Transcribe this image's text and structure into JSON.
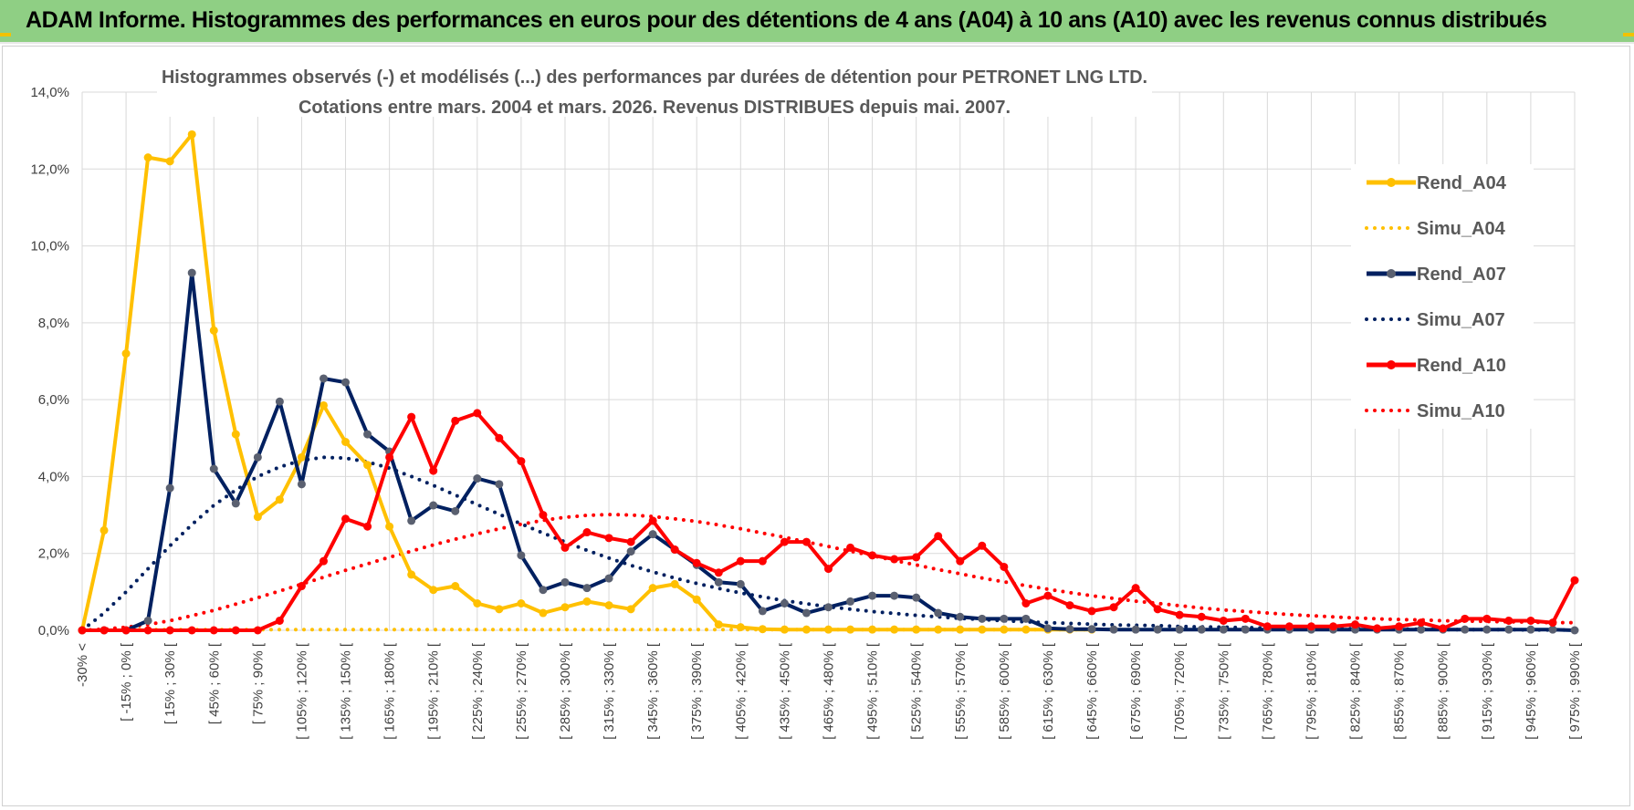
{
  "banner": {
    "title": "ADAM Informe. Histogrammes des performances en euros pour des détentions de 4 ans (A04) à 10 ans (A10) avec les revenus connus distribués"
  },
  "colors": {
    "banner": "#8fcf84",
    "a04": "#ffc000",
    "a07": "#002060",
    "a10": "#ff0000",
    "marker_a07": "#5a6070",
    "grid": "#d9d9d9"
  },
  "chart_data": {
    "type": "line",
    "title_line1": "Histogrammes observés (-) et modélisés (...) des performances par durées de détention pour PETRONET LNG LTD.",
    "title_line2": "Cotations entre mars. 2004 et mars. 2026. Revenus DISTRIBUES depuis mai. 2007.",
    "ylim": [
      0,
      14
    ],
    "yticks": [
      "0,0%",
      "2,0%",
      "4,0%",
      "6,0%",
      "8,0%",
      "10,0%",
      "12,0%",
      "14,0%"
    ],
    "xtick_labels": [
      "-30% <",
      "[ -15% ; 0% [",
      "[ 15% ; 30% [",
      "[ 45% ; 60% [",
      "[ 75% ; 90% [",
      "[ 105% ; 120% [",
      "[ 135% ; 150% [",
      "[ 165% ; 180% [",
      "[ 195% ; 210% [",
      "[ 225% ; 240% [",
      "[ 255% ; 270% [",
      "[ 285% ; 300% [",
      "[ 315% ; 330% [",
      "[ 345% ; 360% [",
      "[ 375% ; 390% [",
      "[ 405% ; 420% [",
      "[ 435% ; 450% [",
      "[ 465% ; 480% [",
      "[ 495% ; 510% [",
      "[ 525% ; 540% [",
      "[ 555% ; 570% [",
      "[ 585% ; 600% [",
      "[ 615% ; 630% [",
      "[ 645% ; 660% [",
      "[ 675% ; 690% [",
      "[ 705% ; 720% [",
      "[ 735% ; 750% [",
      "[ 765% ; 780% [",
      "[ 795% ; 810% [",
      "[ 825% ; 840% [",
      "[ 855% ; 870% [",
      "[ 885% ; 900% [",
      "[ 915% ; 930% [",
      "[ 945% ; 960% [",
      "[ 975% ; 990% ["
    ],
    "category_count": 69,
    "legend_position": "right",
    "series": [
      {
        "name": "Rend_A04",
        "style": "solid",
        "color": "#ffc000",
        "marker": "#ffc000",
        "values": [
          0,
          2.6,
          7.2,
          12.3,
          12.2,
          12.9,
          7.8,
          5.1,
          2.95,
          3.4,
          4.5,
          5.85,
          4.9,
          4.3,
          2.7,
          1.45,
          1.05,
          1.15,
          0.7,
          0.55,
          0.7,
          0.45,
          0.6,
          0.75,
          0.65,
          0.55,
          1.1,
          1.2,
          0.8,
          0.15,
          0.08,
          0.03,
          0.02,
          0.02,
          0.02,
          0.02,
          0.02,
          0.02,
          0.02,
          0.02,
          0.02,
          0.02,
          0.02,
          0.02,
          0.02,
          0.02,
          0.02
        ]
      },
      {
        "name": "Simu_A04",
        "style": "dotted",
        "color": "#ffc000",
        "values": [
          0,
          0.02,
          0.02,
          0.02,
          0.02,
          0.02,
          0.02,
          0.02,
          0.02,
          0.02,
          0.02,
          0.02,
          0.02,
          0.02,
          0.02,
          0.02,
          0.02,
          0.02,
          0.02,
          0.02,
          0.02,
          0.02,
          0.02,
          0.02,
          0.02,
          0.02,
          0.02,
          0.02,
          0.02,
          0.02,
          0.02,
          0.02,
          0.02,
          0.02,
          0.02,
          0.02,
          0.02,
          0.02,
          0.02,
          0.02,
          0.02,
          0.02,
          0.02,
          0.02,
          0.02,
          0.02,
          0.02
        ]
      },
      {
        "name": "Rend_A07",
        "style": "solid",
        "color": "#002060",
        "marker": "#5a6070",
        "values": [
          0,
          0,
          0,
          0.25,
          3.7,
          9.3,
          4.2,
          3.3,
          4.5,
          5.95,
          3.8,
          6.55,
          6.45,
          5.1,
          4.65,
          2.85,
          3.25,
          3.1,
          3.95,
          3.8,
          1.95,
          1.05,
          1.25,
          1.1,
          1.35,
          2.05,
          2.5,
          2.1,
          1.7,
          1.25,
          1.2,
          0.5,
          0.7,
          0.45,
          0.6,
          0.75,
          0.9,
          0.9,
          0.85,
          0.45,
          0.35,
          0.3,
          0.3,
          0.3,
          0.05,
          0.03,
          0.03,
          0.02,
          0.02,
          0.02,
          0.02,
          0.02,
          0.02,
          0.02,
          0.02,
          0.02,
          0.02,
          0.02,
          0.02,
          0.02,
          0.02,
          0.02,
          0.02,
          0.02,
          0.02,
          0.02,
          0.02,
          0.02,
          0
        ]
      },
      {
        "name": "Simu_A07",
        "style": "dotted",
        "color": "#002060",
        "values": [
          0,
          0.45,
          1.0,
          1.6,
          2.2,
          2.75,
          3.25,
          3.65,
          4.0,
          4.25,
          4.42,
          4.5,
          4.48,
          4.38,
          4.22,
          4.0,
          3.77,
          3.52,
          3.27,
          3.02,
          2.77,
          2.53,
          2.3,
          2.08,
          1.88,
          1.69,
          1.52,
          1.36,
          1.22,
          1.09,
          0.97,
          0.87,
          0.77,
          0.69,
          0.61,
          0.55,
          0.49,
          0.44,
          0.39,
          0.35,
          0.31,
          0.28,
          0.25,
          0.22,
          0.2,
          0.18,
          0.16,
          0.14,
          0.13,
          0.12,
          0.1,
          0.09,
          0.08,
          0.07,
          0.06,
          0.05,
          0.05,
          0.04,
          0.04,
          0.03,
          0.03,
          0.03,
          0.02,
          0.02,
          0.02,
          0.02,
          0.01,
          0.01,
          0.01
        ]
      },
      {
        "name": "Rend_A10",
        "style": "solid",
        "color": "#ff0000",
        "marker": "#ff0000",
        "values": [
          0,
          0,
          0,
          0,
          0,
          0,
          0,
          0,
          0,
          0.25,
          1.15,
          1.8,
          2.9,
          2.7,
          4.5,
          5.55,
          4.15,
          5.45,
          5.65,
          5.0,
          4.4,
          3.0,
          2.15,
          2.55,
          2.4,
          2.3,
          2.85,
          2.1,
          1.75,
          1.5,
          1.8,
          1.8,
          2.3,
          2.3,
          1.6,
          2.15,
          1.95,
          1.85,
          1.9,
          2.45,
          1.8,
          2.2,
          1.65,
          0.7,
          0.9,
          0.65,
          0.5,
          0.6,
          1.1,
          0.55,
          0.4,
          0.35,
          0.25,
          0.3,
          0.1,
          0.1,
          0.1,
          0.1,
          0.15,
          0.05,
          0.1,
          0.2,
          0.05,
          0.3,
          0.3,
          0.25,
          0.25,
          0.2,
          1.3
        ]
      },
      {
        "name": "Simu_A10",
        "style": "dotted",
        "color": "#ff0000",
        "values": [
          0,
          0.03,
          0.08,
          0.15,
          0.25,
          0.38,
          0.52,
          0.68,
          0.85,
          1.02,
          1.2,
          1.38,
          1.56,
          1.73,
          1.9,
          2.06,
          2.22,
          2.37,
          2.51,
          2.64,
          2.76,
          2.86,
          2.94,
          2.99,
          3.01,
          3.0,
          2.96,
          2.9,
          2.83,
          2.74,
          2.64,
          2.53,
          2.42,
          2.3,
          2.18,
          2.06,
          1.94,
          1.82,
          1.7,
          1.58,
          1.47,
          1.36,
          1.26,
          1.16,
          1.07,
          0.98,
          0.9,
          0.83,
          0.76,
          0.7,
          0.64,
          0.58,
          0.53,
          0.49,
          0.45,
          0.41,
          0.38,
          0.35,
          0.32,
          0.3,
          0.28,
          0.27,
          0.25,
          0.24,
          0.23,
          0.22,
          0.21,
          0.2,
          0.2
        ]
      }
    ]
  }
}
